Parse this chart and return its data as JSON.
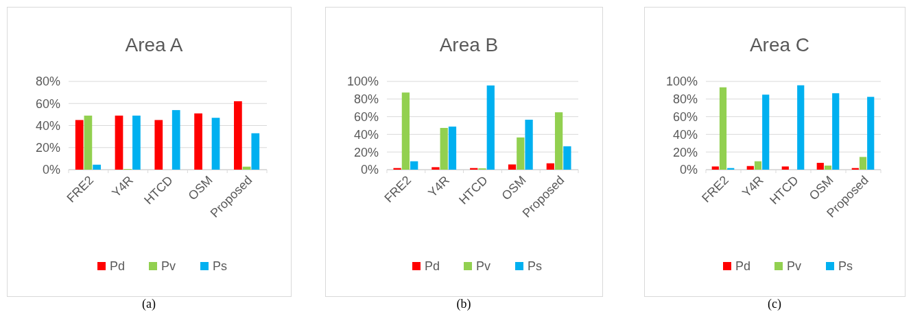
{
  "chart_data": [
    {
      "type": "bar",
      "title": "Area A",
      "categories": [
        "FRE2",
        "Y4R",
        "HTCD",
        "OSM",
        "Proposed"
      ],
      "ylim": [
        0,
        80
      ],
      "yticks": [
        {
          "value": 0,
          "label": "0%"
        },
        {
          "value": 20,
          "label": "20%"
        },
        {
          "value": 40,
          "label": "40%"
        },
        {
          "value": 60,
          "label": "60%"
        },
        {
          "value": 80,
          "label": "80%"
        }
      ],
      "grid": "y",
      "legend": "bottom",
      "annotations": [
        "(a)"
      ],
      "series": [
        {
          "name": "Pd",
          "color": "#ff0000",
          "values": [
            45,
            49,
            45,
            51,
            62
          ]
        },
        {
          "name": "Pv",
          "color": "#92d050",
          "values": [
            49,
            0.6,
            0,
            0,
            2.7
          ]
        },
        {
          "name": "Ps",
          "color": "#00b0f0",
          "values": [
            4.5,
            49,
            54,
            47,
            33
          ]
        }
      ]
    },
    {
      "type": "bar",
      "title": "Area B",
      "categories": [
        "FRE2",
        "Y4R",
        "HTCD",
        "OSM",
        "Proposed"
      ],
      "ylim": [
        0,
        100
      ],
      "yticks": [
        {
          "value": 0,
          "label": "0%"
        },
        {
          "value": 20,
          "label": "20%"
        },
        {
          "value": 40,
          "label": "40%"
        },
        {
          "value": 60,
          "label": "60%"
        },
        {
          "value": 80,
          "label": "80%"
        },
        {
          "value": 100,
          "label": "100%"
        }
      ],
      "grid": "y",
      "legend": "bottom",
      "annotations": [
        "(b)"
      ],
      "series": [
        {
          "name": "Pd",
          "color": "#ff0000",
          "values": [
            1.8,
            2.8,
            1.8,
            5.9,
            7.2
          ]
        },
        {
          "name": "Pv",
          "color": "#92d050",
          "values": [
            87.4,
            47.3,
            1.5,
            36.5,
            65
          ]
        },
        {
          "name": "Ps",
          "color": "#00b0f0",
          "values": [
            9.5,
            48.8,
            95.4,
            56.6,
            26.5
          ]
        }
      ]
    },
    {
      "type": "bar",
      "title": "Area C",
      "categories": [
        "FRE2",
        "Y4R",
        "HTCD",
        "OSM",
        "Proposed"
      ],
      "ylim": [
        0,
        100
      ],
      "yticks": [
        {
          "value": 0,
          "label": "0%"
        },
        {
          "value": 20,
          "label": "20%"
        },
        {
          "value": 40,
          "label": "40%"
        },
        {
          "value": 60,
          "label": "60%"
        },
        {
          "value": 80,
          "label": "80%"
        },
        {
          "value": 100,
          "label": "100%"
        }
      ],
      "grid": "y",
      "legend": "bottom",
      "annotations": [
        "(c)"
      ],
      "series": [
        {
          "name": "Pd",
          "color": "#ff0000",
          "values": [
            3.6,
            4.1,
            3.6,
            7.7,
            1.8
          ]
        },
        {
          "name": "Pv",
          "color": "#92d050",
          "values": [
            93.3,
            9.5,
            0,
            4.6,
            14.4
          ]
        },
        {
          "name": "Ps",
          "color": "#00b0f0",
          "values": [
            1.8,
            85,
            95.6,
            86.6,
            82.5
          ]
        }
      ]
    }
  ]
}
